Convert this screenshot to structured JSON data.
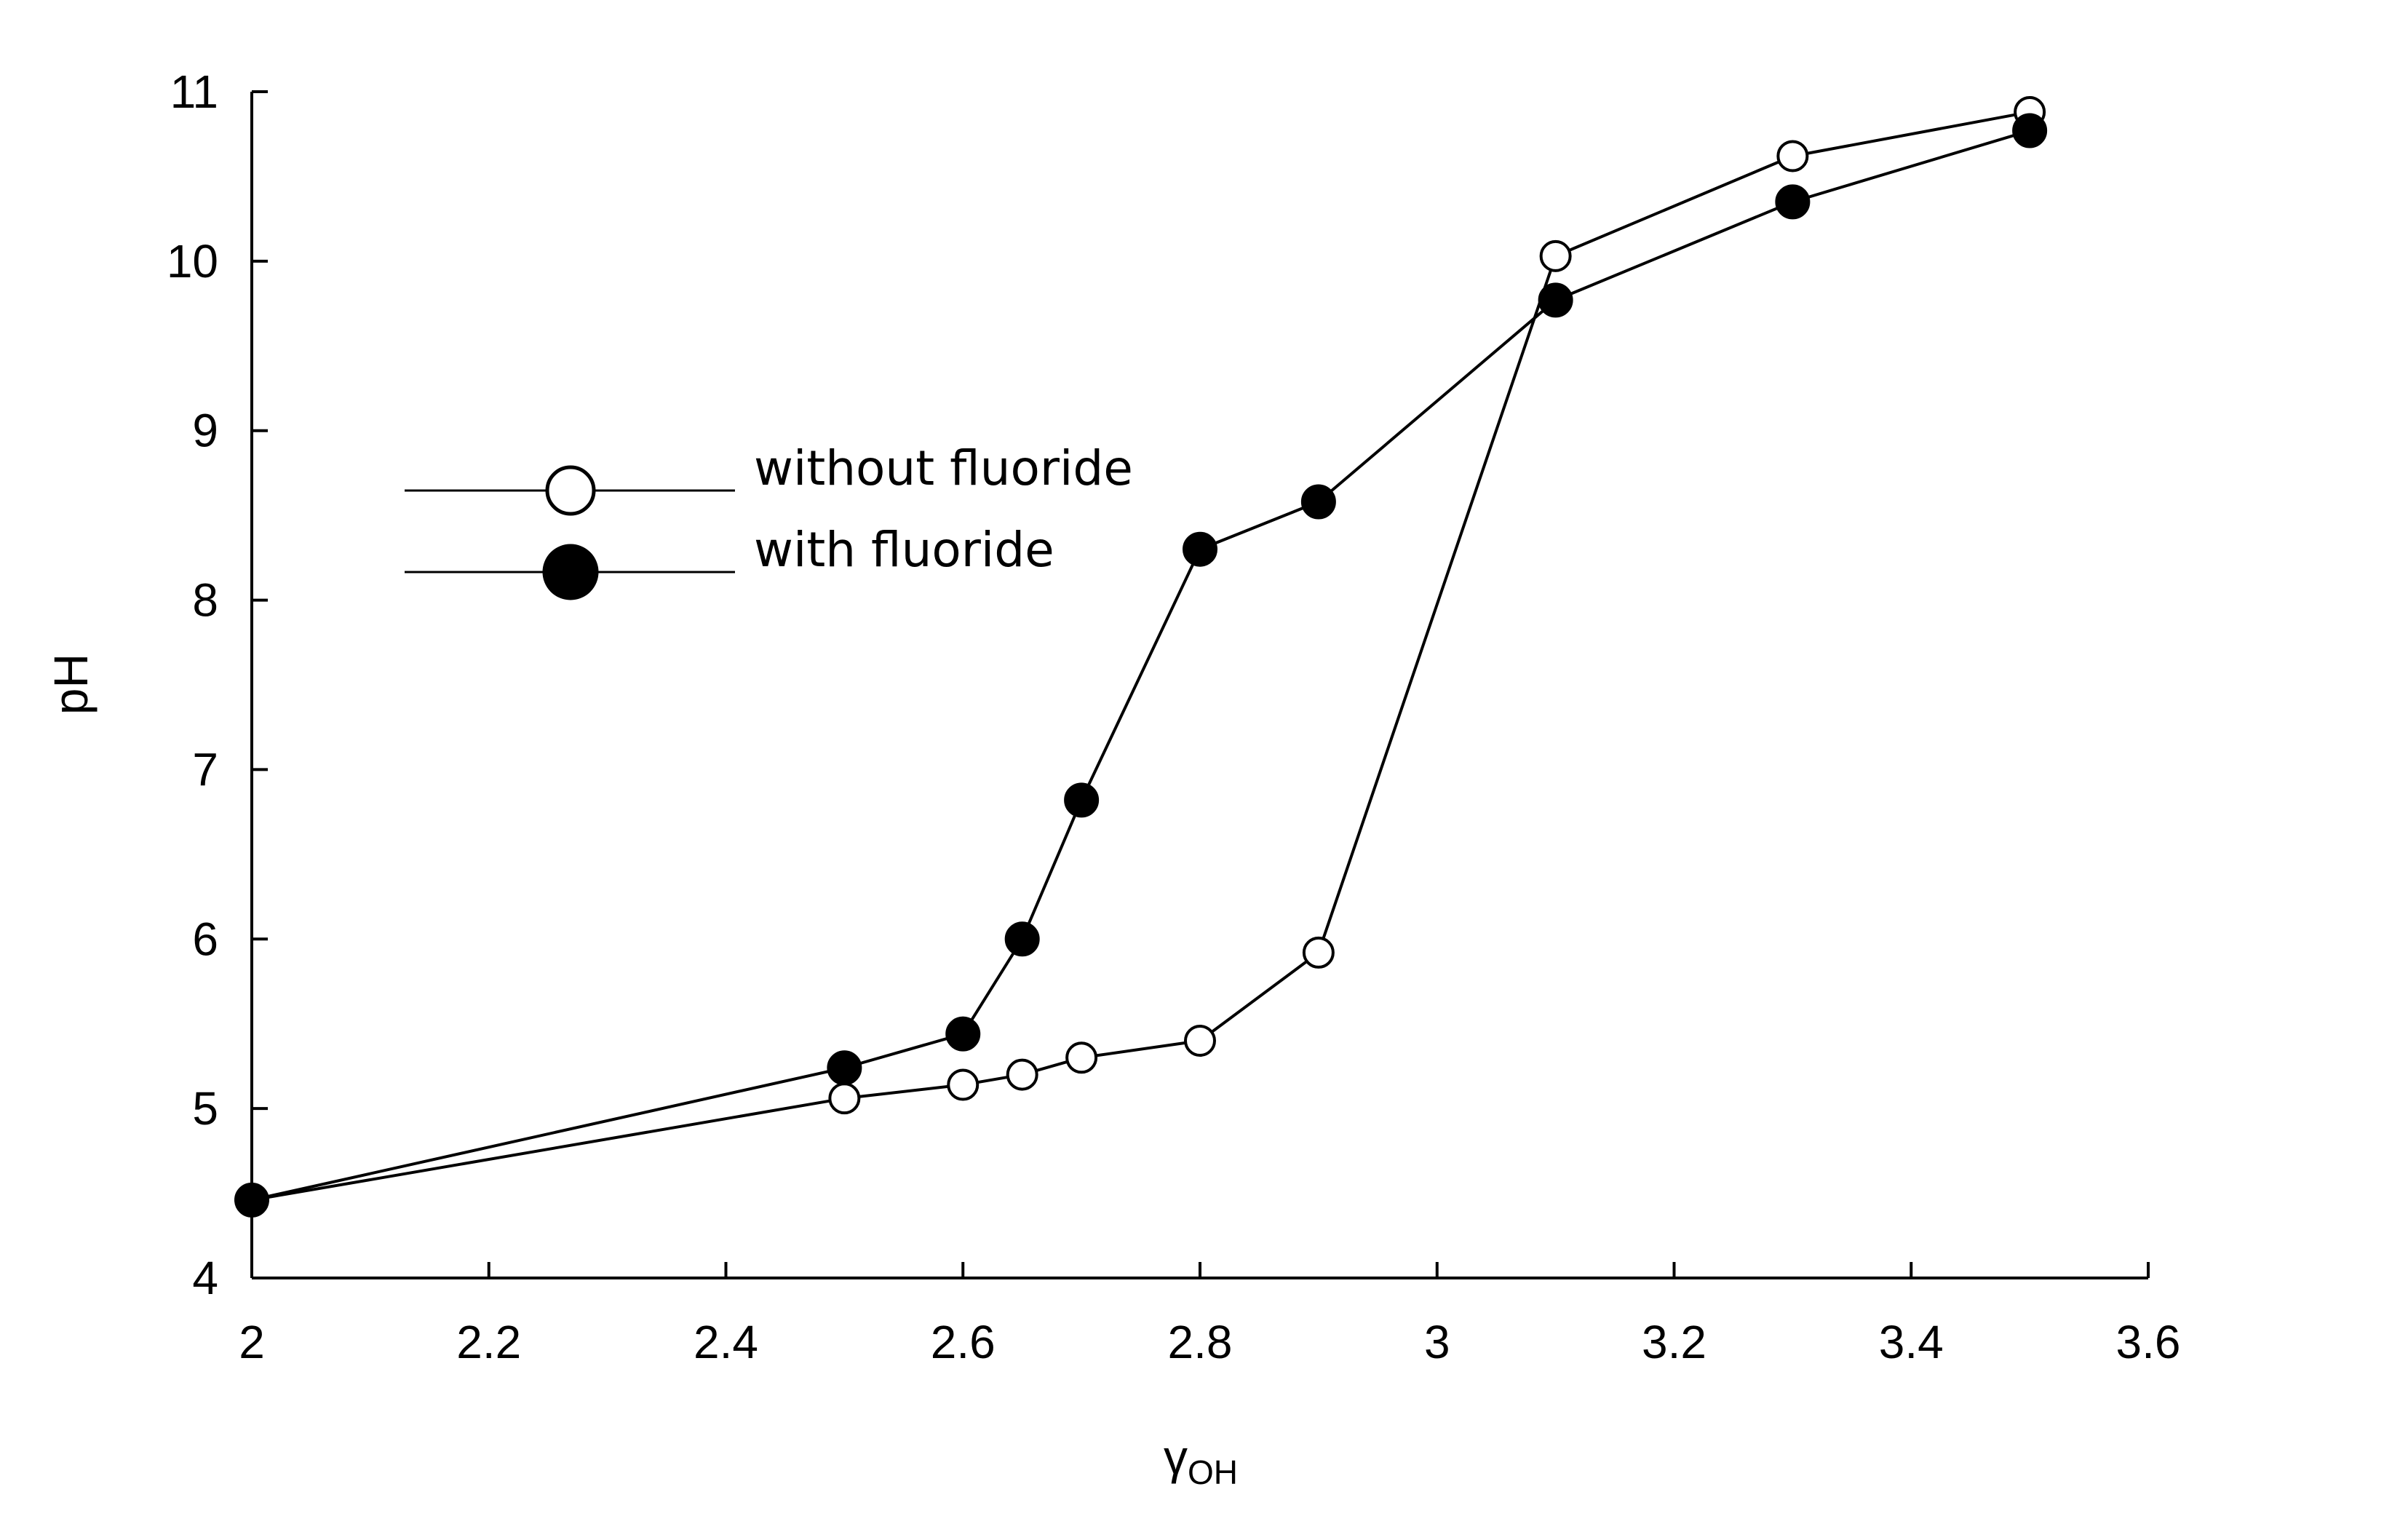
{
  "chart_data": {
    "type": "line",
    "xlabel": "γ",
    "xlabel_subscript": "OH",
    "ylabel": "pH",
    "xlim": [
      2,
      3.6
    ],
    "ylim": [
      4,
      11
    ],
    "xticks": [
      "2",
      "2.2",
      "2.4",
      "2.6",
      "2.8",
      "3",
      "3.2",
      "3.4",
      "3.6"
    ],
    "yticks": [
      "4",
      "5",
      "6",
      "7",
      "8",
      "9",
      "10",
      "11"
    ],
    "grid": false,
    "legend_position": "upper-left",
    "series": [
      {
        "name": "without fluoride",
        "marker": "open-circle",
        "x": [
          2,
          2.5,
          2.6,
          2.65,
          2.7,
          2.8,
          2.9,
          3.1,
          3.3,
          3.5
        ],
        "y": [
          4.46,
          5.06,
          5.14,
          5.2,
          5.3,
          5.4,
          5.92,
          10.03,
          10.62,
          10.88
        ]
      },
      {
        "name": "with fluoride",
        "marker": "filled-circle",
        "x": [
          2,
          2.5,
          2.6,
          2.65,
          2.7,
          2.8,
          2.9,
          3.1,
          3.3,
          3.5
        ],
        "y": [
          4.46,
          5.24,
          5.44,
          6.0,
          6.82,
          8.3,
          8.58,
          9.77,
          10.35,
          10.77
        ]
      }
    ]
  }
}
